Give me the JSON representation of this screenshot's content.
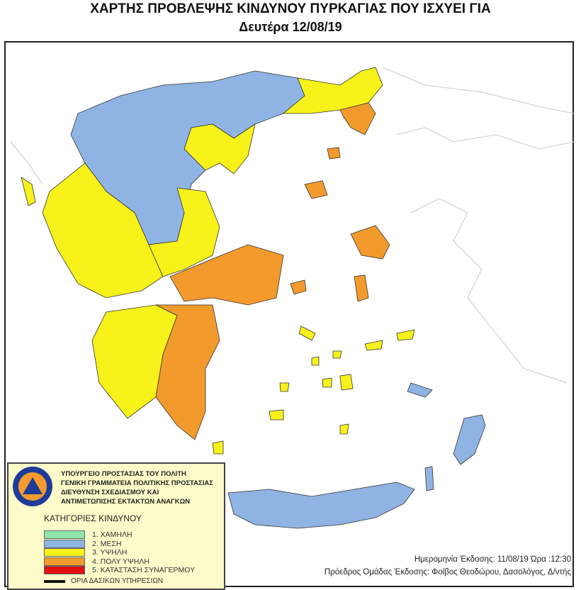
{
  "title": "ΧΑΡΤΗΣ ΠΡΟΒΛΕΨΗΣ ΚΙΝΔΥΝΟΥ ΠΥΡΚΑΓΙΑΣ ΠΟΥ ΙΣΧΥΕΙ ΓΙΑ",
  "subtitle": "Δευτέρα 12/08/19",
  "colors": {
    "low": "#8ee6a8",
    "medium": "#8fb4e3",
    "high": "#f6f21a",
    "very_high": "#f39a2c",
    "alarm": "#e01010",
    "sea": "#ffffff",
    "neighbor_outline": "#c8c8c8"
  },
  "legend": {
    "logo_text": "ΠΟΛΙΤΙΚΗ ΠΡΟΣΤΑΣΙΑ ΕΛΛΑΔΑ",
    "organization": [
      "ΥΠΟΥΡΓΕΙΟ ΠΡΟΣΤΑΣΙΑΣ ΤΟΥ ΠΟΛΙΤΗ",
      "ΓΕΝΙΚΗ ΓΡΑΜΜΑΤΕΙΑ ΠΟΛΙΤΙΚΗΣ ΠΡΟΣΤΑΣΙΑΣ",
      "ΔΙΕΥΘΥΝΣΗ ΣΧΕΔΙΑΣΜΟΥ ΚΑΙ",
      "ΑΝΤΙΜΕΤΩΠΙΣΗΣ ΕΚΤΑΚΤΩΝ ΑΝΑΓΚΩΝ"
    ],
    "categories_title": "ΚΑΤΗΓΟΡΙΕΣ ΚΙΝΔΥΝΟΥ",
    "categories": [
      {
        "label": "1. ΧΑΜΗΛΗ",
        "color": "#8ee6a8"
      },
      {
        "label": "2. ΜΕΣΗ",
        "color": "#8fb4e3"
      },
      {
        "label": "3. ΥΨΗΛΗ",
        "color": "#f6f21a"
      },
      {
        "label": "4. ΠΟΛΥ ΥΨΗΛΗ",
        "color": "#f39a2c"
      },
      {
        "label": "5. ΚΑΤΑΣΤΑΣΗ ΣΥΝΑΓΕΡΜΟΥ",
        "color": "#e01010"
      }
    ],
    "boundaries_label": "ΟΡΙΑ ΔΑΣΙΚΩΝ ΥΠΗΡΕΣΙΩΝ"
  },
  "footer": {
    "issue_line": "Ημερομηνία Έκδοσης: 11/08/19  Ώρα :12:30",
    "author_line": "Πρόεδρος Ομάδας Έκδοσης: Φοίβος Θεοδώρου,  Δασολόγος, Δ/ντής"
  }
}
